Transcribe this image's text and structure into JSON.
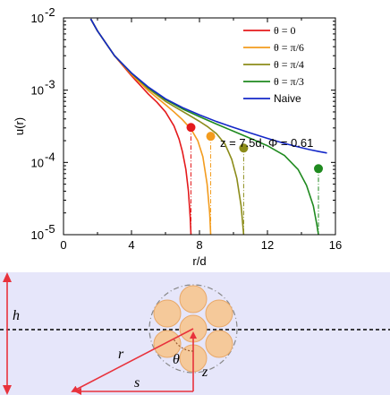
{
  "chart_data": {
    "type": "line",
    "title": "",
    "xlabel": "r/d",
    "ylabel": "u(r)",
    "xlim": [
      0,
      16
    ],
    "ylim": [
      1e-05,
      0.01
    ],
    "yscale": "log",
    "xticks": [
      "0",
      "4",
      "8",
      "12",
      "16"
    ],
    "yticks": [
      {
        "base": "10",
        "exp": "-5"
      },
      {
        "base": "10",
        "exp": "-4"
      },
      {
        "base": "10",
        "exp": "-3"
      },
      {
        "base": "10",
        "exp": "-2"
      }
    ],
    "annotation": "z = 7.5d, Φ = 0.61",
    "legend_position": "top-right",
    "series": [
      {
        "name": "θ = 0",
        "color": "#e41a1c",
        "cutoff": 7.5,
        "marker": [
          7.5,
          0.000305
        ],
        "points": [
          [
            1.6,
            0.0097
          ],
          [
            2,
            0.0066
          ],
          [
            3,
            0.003
          ],
          [
            4,
            0.00158
          ],
          [
            5,
            0.00088
          ],
          [
            5.5,
            0.00068
          ],
          [
            6,
            0.0005
          ],
          [
            6.5,
            0.00032
          ],
          [
            6.8,
            0.00021
          ],
          [
            7,
            0.00014
          ],
          [
            7.2,
            8e-05
          ],
          [
            7.35,
            4e-05
          ],
          [
            7.45,
            1.8e-05
          ],
          [
            7.5,
            1e-05
          ]
        ]
      },
      {
        "name": "θ = π/6",
        "color": "#f39c1e",
        "cutoff": 8.66,
        "marker": [
          8.66,
          0.00023
        ],
        "points": [
          [
            1.6,
            0.0097
          ],
          [
            2,
            0.0066
          ],
          [
            3,
            0.003
          ],
          [
            4,
            0.00165
          ],
          [
            5,
            0.00098
          ],
          [
            6,
            0.00063
          ],
          [
            6.5,
            0.0005
          ],
          [
            7,
            0.00039
          ],
          [
            7.5,
            0.00029
          ],
          [
            7.9,
            0.0002
          ],
          [
            8.2,
            0.00012
          ],
          [
            8.45,
            5e-05
          ],
          [
            8.6,
            2e-05
          ],
          [
            8.66,
            1e-05
          ]
        ]
      },
      {
        "name": "θ = π/4",
        "color": "#8c8c1a",
        "cutoff": 10.6,
        "marker": [
          10.6,
          0.000158
        ],
        "points": [
          [
            1.6,
            0.0097
          ],
          [
            2,
            0.0066
          ],
          [
            3,
            0.003
          ],
          [
            4,
            0.0017
          ],
          [
            5,
            0.00104
          ],
          [
            6,
            0.0007
          ],
          [
            7,
            0.00051
          ],
          [
            8,
            0.00037
          ],
          [
            8.5,
            0.00031
          ],
          [
            9,
            0.00025
          ],
          [
            9.5,
            0.00018
          ],
          [
            9.9,
            0.00011
          ],
          [
            10.2,
            6e-05
          ],
          [
            10.45,
            2.5e-05
          ],
          [
            10.6,
            1e-05
          ]
        ]
      },
      {
        "name": "θ = π/3",
        "color": "#1f8a1f",
        "cutoff": 15.0,
        "marker": [
          15.0,
          8.2e-05
        ],
        "points": [
          [
            1.6,
            0.0097
          ],
          [
            2,
            0.0066
          ],
          [
            3,
            0.003
          ],
          [
            4,
            0.00172
          ],
          [
            5,
            0.00108
          ],
          [
            6,
            0.00074
          ],
          [
            7,
            0.00055
          ],
          [
            8,
            0.00043
          ],
          [
            9,
            0.00034
          ],
          [
            10,
            0.00027
          ],
          [
            11,
            0.000215
          ],
          [
            12,
            0.00017
          ],
          [
            13,
            0.000125
          ],
          [
            13.8,
            8e-05
          ],
          [
            14.3,
            4.8e-05
          ],
          [
            14.7,
            2.5e-05
          ],
          [
            14.9,
            1.4e-05
          ],
          [
            15.0,
            1e-05
          ]
        ]
      },
      {
        "name": "Naive",
        "color": "#1428c8",
        "cutoff": null,
        "marker": null,
        "points": [
          [
            1.6,
            0.0097
          ],
          [
            2,
            0.0066
          ],
          [
            3,
            0.003
          ],
          [
            4,
            0.00173
          ],
          [
            5,
            0.0011
          ],
          [
            6,
            0.00076
          ],
          [
            7,
            0.000575
          ],
          [
            8,
            0.000455
          ],
          [
            9,
            0.000368
          ],
          [
            10,
            0.000305
          ],
          [
            11,
            0.000255
          ],
          [
            12,
            0.000215
          ],
          [
            13,
            0.000183
          ],
          [
            14,
            0.00016
          ],
          [
            14.5,
            0.00015
          ],
          [
            15,
            0.000142
          ],
          [
            15.5,
            0.000135
          ]
        ]
      }
    ]
  },
  "diagram": {
    "labels": {
      "h": "h",
      "r": "r",
      "theta": "θ",
      "z": "z",
      "s": "s"
    },
    "colors": {
      "band": "#e6e6fa",
      "particle": "#f5c99a",
      "particle_edge": "#e8a868",
      "arrow": "#e8323c"
    }
  }
}
